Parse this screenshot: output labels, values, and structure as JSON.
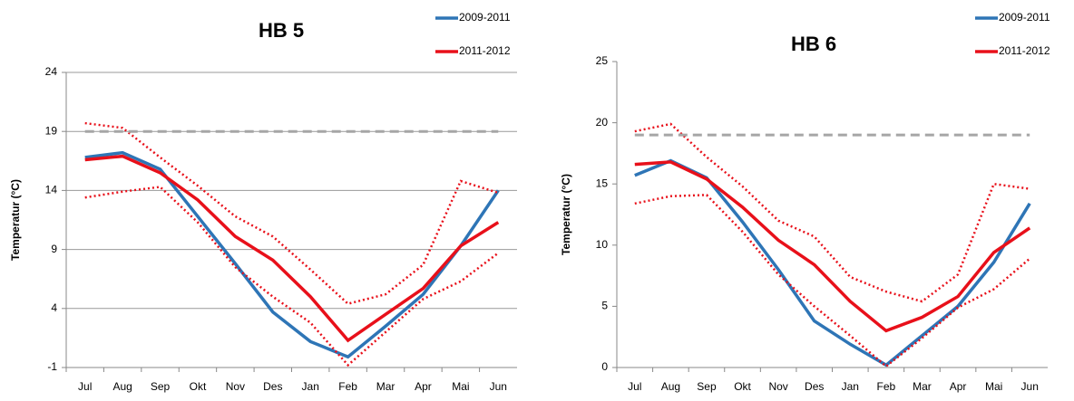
{
  "chart_data": [
    {
      "type": "line",
      "title": "HB 5",
      "y_label": "Temperatur (°C)",
      "categories": [
        "Jul",
        "Aug",
        "Sep",
        "Okt",
        "Nov",
        "Des",
        "Jan",
        "Feb",
        "Mar",
        "Apr",
        "Mai",
        "Jun"
      ],
      "ylim": [
        -1,
        24
      ],
      "yticks": [
        -1,
        4,
        9,
        14,
        19,
        24
      ],
      "grid": true,
      "legend": "top-right",
      "series": [
        {
          "name": "2009-2011",
          "color": "#2e75b6",
          "style": "solid",
          "values": [
            16.8,
            17.2,
            15.8,
            11.8,
            7.8,
            3.7,
            1.2,
            -0.1,
            2.5,
            5.2,
            9.3,
            14.0
          ]
        },
        {
          "name": "2011-2012",
          "color": "#e8101a",
          "style": "solid",
          "values": [
            16.6,
            16.9,
            15.5,
            13.2,
            10.1,
            8.1,
            5.0,
            1.3,
            3.5,
            5.7,
            9.3,
            11.3
          ]
        },
        {
          "color": "#e8101a",
          "style": "dotted",
          "values": [
            19.7,
            19.3,
            16.8,
            14.4,
            11.8,
            10.1,
            7.3,
            4.4,
            5.2,
            7.7,
            14.8,
            13.8
          ]
        },
        {
          "color": "#e8101a",
          "style": "dotted",
          "values": [
            13.4,
            13.9,
            14.3,
            11.3,
            7.5,
            5.0,
            2.8,
            -0.8,
            2.0,
            4.8,
            6.3,
            8.7
          ]
        },
        {
          "color": "#a6a6a6",
          "style": "dashed",
          "values": [
            19,
            19,
            19,
            19,
            19,
            19,
            19,
            19,
            19,
            19,
            19,
            19
          ]
        }
      ]
    },
    {
      "type": "line",
      "title": "HB 6",
      "y_label": "Temperatur (°C)",
      "categories": [
        "Jul",
        "Aug",
        "Sep",
        "Okt",
        "Nov",
        "Des",
        "Jan",
        "Feb",
        "Mar",
        "Apr",
        "Mai",
        "Jun"
      ],
      "ylim": [
        0,
        25
      ],
      "yticks": [
        0,
        5,
        10,
        15,
        20,
        25
      ],
      "grid": false,
      "legend": "top-right",
      "series": [
        {
          "name": "2009-2011",
          "color": "#2e75b6",
          "style": "solid",
          "values": [
            15.7,
            16.9,
            15.5,
            11.9,
            8.0,
            3.8,
            1.9,
            0.2,
            2.6,
            5.0,
            8.6,
            13.4
          ]
        },
        {
          "name": "2011-2012",
          "color": "#e8101a",
          "style": "solid",
          "values": [
            16.6,
            16.8,
            15.4,
            13.1,
            10.4,
            8.4,
            5.4,
            3.0,
            4.1,
            5.8,
            9.4,
            11.4
          ]
        },
        {
          "color": "#e8101a",
          "style": "dotted",
          "values": [
            19.3,
            19.9,
            17.2,
            14.8,
            12.0,
            10.7,
            7.4,
            6.2,
            5.4,
            7.6,
            15.0,
            14.6
          ]
        },
        {
          "color": "#e8101a",
          "style": "dotted",
          "values": [
            13.4,
            14.0,
            14.1,
            11.1,
            7.6,
            5.0,
            2.6,
            0.1,
            2.4,
            4.9,
            6.4,
            8.9
          ]
        },
        {
          "color": "#a6a6a6",
          "style": "dashed",
          "values": [
            19,
            19,
            19,
            19,
            19,
            19,
            19,
            19,
            19,
            19,
            19,
            19
          ]
        }
      ]
    }
  ]
}
